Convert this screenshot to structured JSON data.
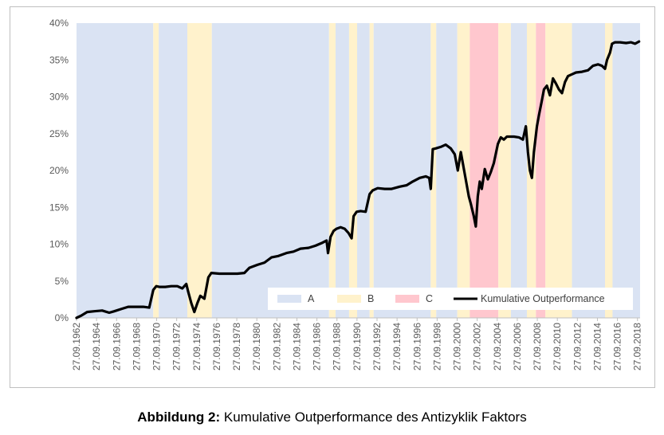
{
  "chart_data": {
    "type": "line",
    "title": "",
    "xlabel": "",
    "ylabel": "",
    "ylim": [
      0,
      40
    ],
    "y_ticks": [
      "0%",
      "5%",
      "10%",
      "15%",
      "20%",
      "25%",
      "30%",
      "35%",
      "40%"
    ],
    "x_range": [
      1962.74,
      2019.0
    ],
    "x_ticks": [
      "27.09.1962",
      "27.09.1964",
      "27.09.1966",
      "27.09.1968",
      "27.09.1970",
      "27.09.1972",
      "27.09.1974",
      "27.09.1976",
      "27.09.1978",
      "27.09.1980",
      "27.09.1982",
      "27.09.1984",
      "27.09.1986",
      "27.09.1988",
      "27.09.1990",
      "27.09.1992",
      "27.09.1994",
      "27.09.1996",
      "27.09.1998",
      "27.09.2000",
      "27.09.2002",
      "27.09.2004",
      "27.09.2006",
      "27.09.2008",
      "27.09.2010",
      "27.09.2012",
      "27.09.2014",
      "27.09.2016",
      "27.09.2018"
    ],
    "grid": false,
    "legend_position": "bottom-right",
    "colors": {
      "A": "#dae3f3",
      "B": "#fff2cc",
      "C": "#ffc7ce",
      "line": "#000000"
    },
    "regimes": [
      {
        "start": 1962.74,
        "end": 1970.4,
        "regime": "A"
      },
      {
        "start": 1970.4,
        "end": 1970.95,
        "regime": "B"
      },
      {
        "start": 1970.95,
        "end": 1973.8,
        "regime": "A"
      },
      {
        "start": 1973.8,
        "end": 1976.25,
        "regime": "B"
      },
      {
        "start": 1976.25,
        "end": 1987.95,
        "regime": "A"
      },
      {
        "start": 1987.95,
        "end": 1988.6,
        "regime": "B"
      },
      {
        "start": 1988.6,
        "end": 1989.95,
        "regime": "A"
      },
      {
        "start": 1989.95,
        "end": 1990.75,
        "regime": "B"
      },
      {
        "start": 1990.75,
        "end": 1992.0,
        "regime": "A"
      },
      {
        "start": 1992.0,
        "end": 1992.4,
        "regime": "B"
      },
      {
        "start": 1992.4,
        "end": 1998.1,
        "regime": "A"
      },
      {
        "start": 1998.1,
        "end": 1998.65,
        "regime": "B"
      },
      {
        "start": 1998.65,
        "end": 2000.75,
        "regime": "A"
      },
      {
        "start": 2000.75,
        "end": 2002.0,
        "regime": "B"
      },
      {
        "start": 2002.0,
        "end": 2004.85,
        "regime": "C"
      },
      {
        "start": 2004.85,
        "end": 2006.1,
        "regime": "B"
      },
      {
        "start": 2006.1,
        "end": 2007.7,
        "regime": "A"
      },
      {
        "start": 2007.7,
        "end": 2008.6,
        "regime": "B"
      },
      {
        "start": 2008.6,
        "end": 2009.55,
        "regime": "C"
      },
      {
        "start": 2009.55,
        "end": 2012.2,
        "regime": "B"
      },
      {
        "start": 2012.2,
        "end": 2015.5,
        "regime": "A"
      },
      {
        "start": 2015.5,
        "end": 2016.25,
        "regime": "B"
      },
      {
        "start": 2016.25,
        "end": 2019.0,
        "regime": "A"
      }
    ],
    "series": [
      {
        "name": "Kumulative Outperformance",
        "x": [
          1962.74,
          1963.2,
          1963.8,
          1964.5,
          1965.3,
          1966.0,
          1966.5,
          1967.2,
          1967.9,
          1968.6,
          1969.4,
          1970.0,
          1970.4,
          1970.7,
          1971.0,
          1971.6,
          1972.2,
          1972.8,
          1973.3,
          1973.7,
          1973.9,
          1974.2,
          1974.5,
          1974.8,
          1975.1,
          1975.5,
          1975.9,
          1976.2,
          1977.0,
          1978.0,
          1978.8,
          1979.5,
          1980.0,
          1980.8,
          1981.5,
          1982.2,
          1982.9,
          1983.7,
          1984.4,
          1985.1,
          1985.9,
          1986.6,
          1987.3,
          1987.7,
          1987.85,
          1988.1,
          1988.4,
          1988.7,
          1989.1,
          1989.5,
          1989.9,
          1990.2,
          1990.4,
          1990.7,
          1991.1,
          1991.6,
          1992.0,
          1992.3,
          1992.8,
          1993.5,
          1994.2,
          1995.0,
          1995.7,
          1996.3,
          1997.0,
          1997.6,
          1997.95,
          1998.1,
          1998.3,
          1998.6,
          1999.1,
          1999.6,
          2000.1,
          2000.5,
          2000.8,
          2001.1,
          2001.5,
          2001.9,
          2002.1,
          2002.4,
          2002.6,
          2002.8,
          2003.0,
          2003.2,
          2003.5,
          2003.8,
          2004.1,
          2004.4,
          2004.8,
          2005.1,
          2005.4,
          2005.7,
          2006.0,
          2006.4,
          2006.9,
          2007.3,
          2007.6,
          2007.8,
          2008.0,
          2008.2,
          2008.4,
          2008.7,
          2008.9,
          2009.2,
          2009.4,
          2009.7,
          2010.0,
          2010.3,
          2010.6,
          2010.9,
          2011.2,
          2011.5,
          2011.8,
          2012.1,
          2012.6,
          2013.2,
          2013.8,
          2014.3,
          2014.8,
          2015.2,
          2015.5,
          2015.7,
          2016.0,
          2016.2,
          2016.5,
          2017.0,
          2017.6,
          2018.1,
          2018.5,
          2018.9
        ],
        "values": [
          0.0,
          0.3,
          0.8,
          0.9,
          1.0,
          0.7,
          0.9,
          1.2,
          1.5,
          1.5,
          1.5,
          1.4,
          3.8,
          4.3,
          4.2,
          4.2,
          4.3,
          4.3,
          4.0,
          4.6,
          3.5,
          2.0,
          0.8,
          2.0,
          3.0,
          2.6,
          5.5,
          6.1,
          6.0,
          6.0,
          6.0,
          6.1,
          6.8,
          7.2,
          7.5,
          8.2,
          8.4,
          8.8,
          9.0,
          9.4,
          9.5,
          9.8,
          10.2,
          10.5,
          8.8,
          11.0,
          11.8,
          12.1,
          12.3,
          12.1,
          11.5,
          10.8,
          13.8,
          14.4,
          14.5,
          14.4,
          16.8,
          17.3,
          17.6,
          17.5,
          17.5,
          17.8,
          18.0,
          18.5,
          19.0,
          19.2,
          19.0,
          17.5,
          22.9,
          23.0,
          23.2,
          23.5,
          23.0,
          22.2,
          20.0,
          22.5,
          19.5,
          16.5,
          15.5,
          13.8,
          12.4,
          16.5,
          18.5,
          17.5,
          20.2,
          18.8,
          19.8,
          21.0,
          23.6,
          24.5,
          24.2,
          24.6,
          24.6,
          24.6,
          24.5,
          24.2,
          26.0,
          22.5,
          20.0,
          19.0,
          22.5,
          26.0,
          27.5,
          29.5,
          31.0,
          31.5,
          30.2,
          32.5,
          31.8,
          31.0,
          30.5,
          32.0,
          32.8,
          33.0,
          33.3,
          33.4,
          33.6,
          34.2,
          34.4,
          34.2,
          33.8,
          35.0,
          36.0,
          37.2,
          37.4,
          37.4,
          37.3,
          37.4,
          37.2,
          37.5
        ]
      }
    ],
    "legend": [
      {
        "label": "A",
        "kind": "area",
        "color": "#dae3f3"
      },
      {
        "label": "B",
        "kind": "area",
        "color": "#fff2cc"
      },
      {
        "label": "C",
        "kind": "area",
        "color": "#ffc7ce"
      },
      {
        "label": "Kumulative Outperformance",
        "kind": "line",
        "color": "#000000"
      }
    ]
  },
  "caption": {
    "prefix": "Abbildung 2:",
    "text": " Kumulative  Outperformance  des Antizyklik Faktors"
  }
}
